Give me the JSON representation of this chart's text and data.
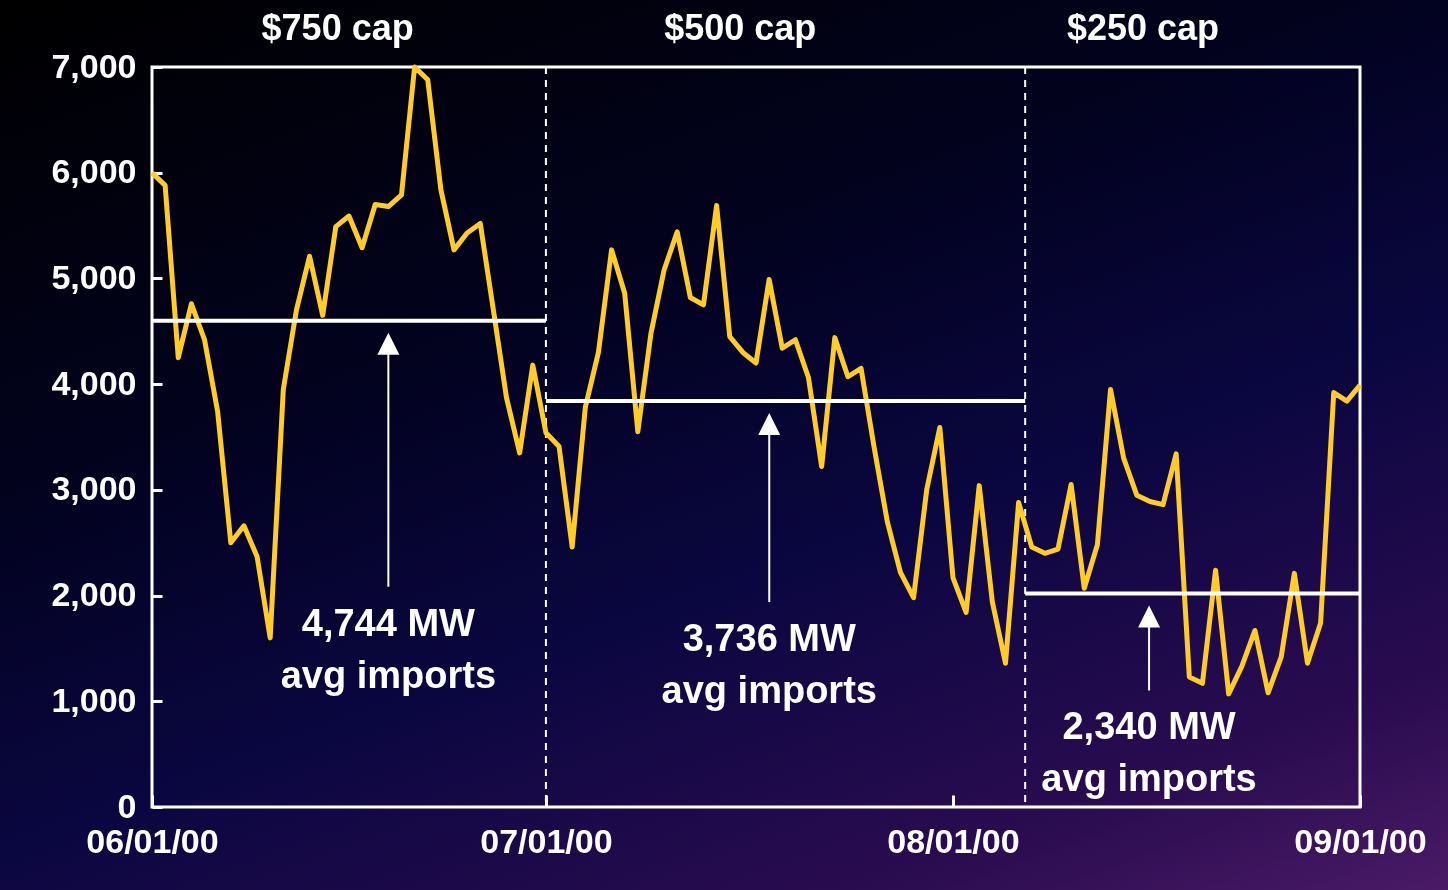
{
  "chart_data": {
    "type": "line",
    "xlim": [
      "2000-06-01",
      "2000-09-01"
    ],
    "xticks": [
      {
        "value": "2000-06-01",
        "label": "06/01/00"
      },
      {
        "value": "2000-07-01",
        "label": "07/01/00"
      },
      {
        "value": "2000-08-01",
        "label": "08/01/00"
      },
      {
        "value": "2000-09-01",
        "label": "09/01/00"
      }
    ],
    "ylim": [
      0,
      7000
    ],
    "yticks": [
      0,
      {
        "value": 1000,
        "label": "1,000"
      },
      {
        "value": 2000,
        "label": "2,000"
      },
      {
        "value": 3000,
        "label": "3,000"
      },
      {
        "value": 4000,
        "label": "4,000"
      },
      {
        "value": 5000,
        "label": "5,000"
      },
      {
        "value": 6000,
        "label": "6,000"
      },
      {
        "value": 7000,
        "label": "7,000"
      }
    ],
    "x": [
      "2000-06-01",
      "2000-06-02",
      "2000-06-03",
      "2000-06-04",
      "2000-06-05",
      "2000-06-06",
      "2000-06-07",
      "2000-06-08",
      "2000-06-09",
      "2000-06-10",
      "2000-06-11",
      "2000-06-12",
      "2000-06-13",
      "2000-06-14",
      "2000-06-15",
      "2000-06-16",
      "2000-06-17",
      "2000-06-18",
      "2000-06-19",
      "2000-06-20",
      "2000-06-21",
      "2000-06-22",
      "2000-06-23",
      "2000-06-24",
      "2000-06-25",
      "2000-06-26",
      "2000-06-27",
      "2000-06-28",
      "2000-06-29",
      "2000-06-30",
      "2000-07-01",
      "2000-07-02",
      "2000-07-03",
      "2000-07-04",
      "2000-07-05",
      "2000-07-06",
      "2000-07-07",
      "2000-07-08",
      "2000-07-09",
      "2000-07-10",
      "2000-07-11",
      "2000-07-12",
      "2000-07-13",
      "2000-07-14",
      "2000-07-15",
      "2000-07-16",
      "2000-07-17",
      "2000-07-18",
      "2000-07-19",
      "2000-07-20",
      "2000-07-21",
      "2000-07-22",
      "2000-07-23",
      "2000-07-24",
      "2000-07-25",
      "2000-07-26",
      "2000-07-27",
      "2000-07-28",
      "2000-07-29",
      "2000-07-30",
      "2000-07-31",
      "2000-08-01",
      "2000-08-02",
      "2000-08-03",
      "2000-08-04",
      "2000-08-05",
      "2000-08-06",
      "2000-08-07",
      "2000-08-08",
      "2000-08-09",
      "2000-08-10",
      "2000-08-11",
      "2000-08-12",
      "2000-08-13",
      "2000-08-14",
      "2000-08-15",
      "2000-08-16",
      "2000-08-17",
      "2000-08-18",
      "2000-08-19",
      "2000-08-20",
      "2000-08-21",
      "2000-08-22",
      "2000-08-23",
      "2000-08-24",
      "2000-08-25",
      "2000-08-26",
      "2000-08-27",
      "2000-08-28",
      "2000-08-29",
      "2000-08-30",
      "2000-08-31",
      "2000-09-01"
    ],
    "series": [
      {
        "color": "#ffcc29",
        "values": [
          6000,
          5880,
          4250,
          4760,
          4420,
          3740,
          2500,
          2660,
          2370,
          1600,
          3950,
          4700,
          5210,
          4650,
          5490,
          5590,
          5290,
          5700,
          5680,
          5790,
          7000,
          6880,
          5840,
          5270,
          5430,
          5520,
          4700,
          3870,
          3350,
          4180,
          3540,
          3410,
          2460,
          3780,
          4300,
          5270,
          4860,
          3550,
          4480,
          5080,
          5440,
          4820,
          4750,
          5690,
          4450,
          4300,
          4200,
          4990,
          4340,
          4420,
          4060,
          3220,
          4440,
          4070,
          4150,
          3400,
          2700,
          2220,
          1980,
          3000,
          3590,
          2170,
          1840,
          3040,
          1940,
          1360,
          2880,
          2460,
          2400,
          2440,
          3050,
          2070,
          2480,
          3950,
          3300,
          2950,
          2890,
          2860,
          3340,
          1230,
          1170,
          2240,
          1070,
          1330,
          1670,
          1080,
          1420,
          2210,
          1360,
          1740,
          3920,
          3840,
          3990
        ]
      },
      {
        "type": "line",
        "color": "#ffffff",
        "x": [
          "2000-06-01",
          "2000-07-01"
        ],
        "values": [
          4600,
          4600
        ]
      },
      {
        "type": "line",
        "color": "#ffffff",
        "x": [
          "2000-07-01",
          "2000-08-06T12:00"
        ],
        "values": [
          3840,
          3840
        ]
      },
      {
        "type": "line",
        "color": "#ffffff",
        "x": [
          "2000-08-06T12:00",
          "2000-09-01"
        ],
        "values": [
          2020,
          2020
        ]
      }
    ],
    "ref_lines": [
      {
        "axis": "x",
        "value": "2000-07-01",
        "color": "#ffffff",
        "line_style": "dashed"
      },
      {
        "axis": "x",
        "value": "2000-08-06T12:00",
        "color": "#ffffff",
        "line_style": "dashed"
      }
    ],
    "annotations": [
      "$750 cap",
      "$500 cap",
      "$250 cap",
      "4,744 MW\navg imports",
      "3,736 MW\navg imports",
      "2,340 MW\navg imports"
    ]
  }
}
